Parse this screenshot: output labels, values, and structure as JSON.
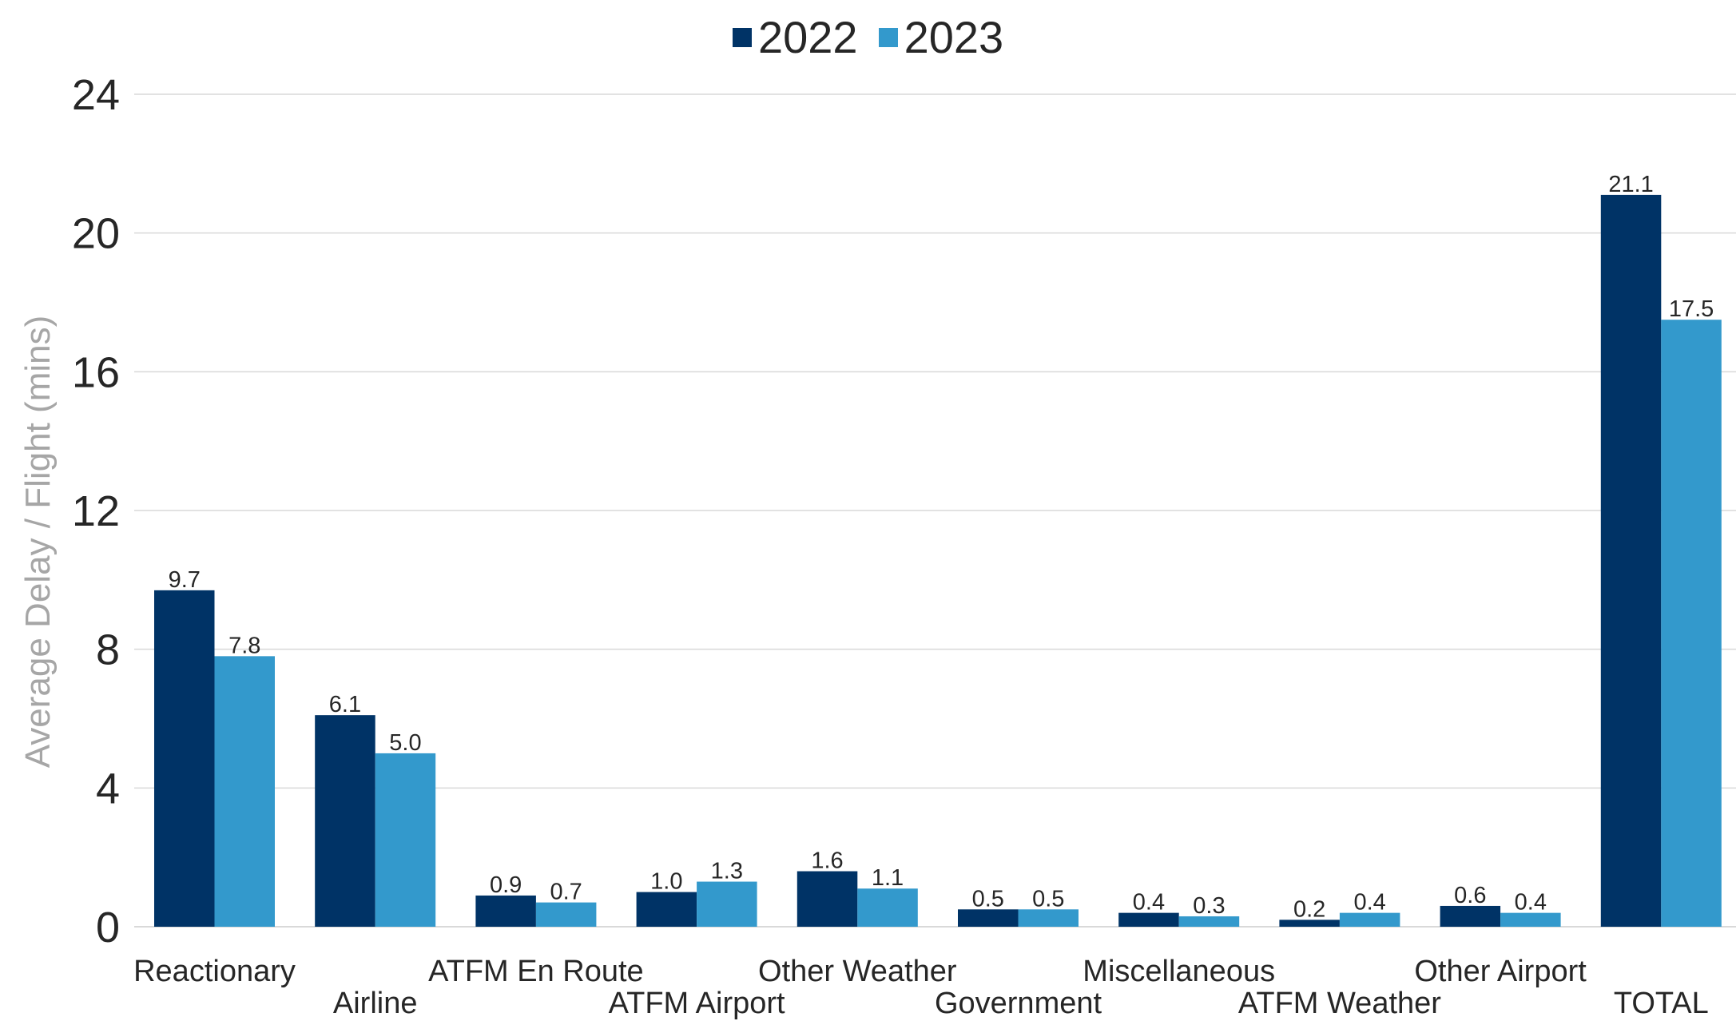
{
  "colors": {
    "series_2022": "#003366",
    "series_2023": "#3399cc",
    "gridline": "#d9d9d9",
    "axis_text": "#262626",
    "ylabel_text": "#a6a6a6"
  },
  "legend": {
    "items": [
      {
        "label": "2022"
      },
      {
        "label": "2023"
      }
    ]
  },
  "chart_data": {
    "type": "bar",
    "title": "",
    "xlabel": "",
    "ylabel": "Average Delay / Flight (mins)",
    "ylim": [
      0,
      24
    ],
    "yticks": [
      "0",
      "4",
      "8",
      "12",
      "16",
      "20",
      "24"
    ],
    "grid": true,
    "legend_position": "top-center",
    "categories": [
      "Reactionary",
      "Airline",
      "ATFM En Route",
      "ATFM Airport",
      "Other Weather",
      "Government",
      "Miscellaneous",
      "ATFM Weather",
      "Other Airport",
      "TOTAL"
    ],
    "series": [
      {
        "name": "2022",
        "values": [
          9.7,
          6.1,
          0.9,
          1.0,
          1.6,
          0.5,
          0.4,
          0.2,
          0.6,
          21.1
        ],
        "labels": [
          "9.7",
          "6.1",
          "0.9",
          "1.0",
          "1.6",
          "0.5",
          "0.4",
          "0.2",
          "0.6",
          "21.1"
        ]
      },
      {
        "name": "2023",
        "values": [
          7.8,
          5.0,
          0.7,
          1.3,
          1.1,
          0.5,
          0.3,
          0.4,
          0.4,
          17.5
        ],
        "labels": [
          "7.8",
          "5.0",
          "0.7",
          "1.3",
          "1.1",
          "0.5",
          "0.3",
          "0.4",
          "0.4",
          "17.5"
        ]
      }
    ]
  }
}
